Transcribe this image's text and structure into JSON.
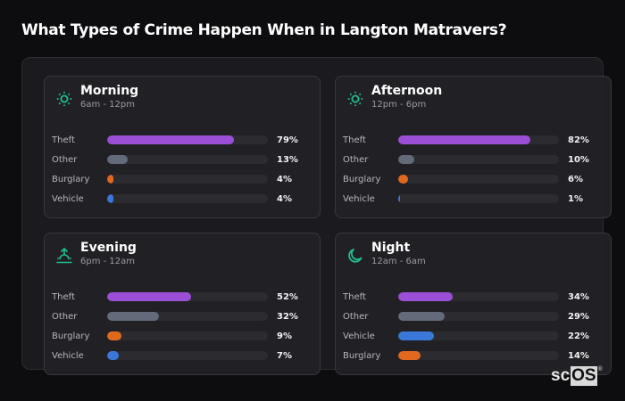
{
  "title": "What Types of Crime Happen When in Langton Matravers?",
  "logo": {
    "part1": "sc",
    "part2": "OS",
    "mark": "®"
  },
  "colors": {
    "Theft": "#9b4fd6",
    "Other": "#636b7a",
    "Burglary": "#e0681f",
    "Vehicle": "#3a78d8",
    "icon": "#1fbf8f"
  },
  "cards": [
    {
      "name": "Morning",
      "range": "6am - 12pm",
      "icon": "sun-icon",
      "rows": [
        {
          "label": "Theft",
          "value": 79,
          "pct": "79%"
        },
        {
          "label": "Other",
          "value": 13,
          "pct": "13%"
        },
        {
          "label": "Burglary",
          "value": 4,
          "pct": "4%"
        },
        {
          "label": "Vehicle",
          "value": 4,
          "pct": "4%"
        }
      ]
    },
    {
      "name": "Afternoon",
      "range": "12pm - 6pm",
      "icon": "sun-icon",
      "rows": [
        {
          "label": "Theft",
          "value": 82,
          "pct": "82%"
        },
        {
          "label": "Other",
          "value": 10,
          "pct": "10%"
        },
        {
          "label": "Burglary",
          "value": 6,
          "pct": "6%"
        },
        {
          "label": "Vehicle",
          "value": 1,
          "pct": "1%"
        }
      ]
    },
    {
      "name": "Evening",
      "range": "6pm - 12am",
      "icon": "sunset-icon",
      "rows": [
        {
          "label": "Theft",
          "value": 52,
          "pct": "52%"
        },
        {
          "label": "Other",
          "value": 32,
          "pct": "32%"
        },
        {
          "label": "Burglary",
          "value": 9,
          "pct": "9%"
        },
        {
          "label": "Vehicle",
          "value": 7,
          "pct": "7%"
        }
      ]
    },
    {
      "name": "Night",
      "range": "12am - 6am",
      "icon": "moon-icon",
      "rows": [
        {
          "label": "Theft",
          "value": 34,
          "pct": "34%"
        },
        {
          "label": "Other",
          "value": 29,
          "pct": "29%"
        },
        {
          "label": "Vehicle",
          "value": 22,
          "pct": "22%"
        },
        {
          "label": "Burglary",
          "value": 14,
          "pct": "14%"
        }
      ]
    }
  ],
  "chart_data": [
    {
      "type": "bar",
      "orientation": "horizontal",
      "title": "Morning",
      "subtitle": "6am - 12pm",
      "categories": [
        "Theft",
        "Other",
        "Burglary",
        "Vehicle"
      ],
      "values": [
        79,
        13,
        4,
        4
      ],
      "unit": "%",
      "xlim": [
        0,
        100
      ]
    },
    {
      "type": "bar",
      "orientation": "horizontal",
      "title": "Afternoon",
      "subtitle": "12pm - 6pm",
      "categories": [
        "Theft",
        "Other",
        "Burglary",
        "Vehicle"
      ],
      "values": [
        82,
        10,
        6,
        1
      ],
      "unit": "%",
      "xlim": [
        0,
        100
      ]
    },
    {
      "type": "bar",
      "orientation": "horizontal",
      "title": "Evening",
      "subtitle": "6pm - 12am",
      "categories": [
        "Theft",
        "Other",
        "Burglary",
        "Vehicle"
      ],
      "values": [
        52,
        32,
        9,
        7
      ],
      "unit": "%",
      "xlim": [
        0,
        100
      ]
    },
    {
      "type": "bar",
      "orientation": "horizontal",
      "title": "Night",
      "subtitle": "12am - 6am",
      "categories": [
        "Theft",
        "Other",
        "Vehicle",
        "Burglary"
      ],
      "values": [
        34,
        29,
        22,
        14
      ],
      "unit": "%",
      "xlim": [
        0,
        100
      ]
    }
  ]
}
